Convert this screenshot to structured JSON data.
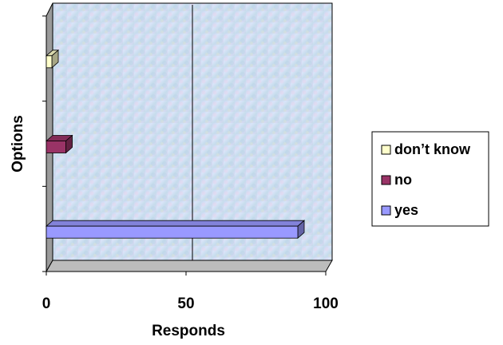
{
  "chart_data": {
    "type": "bar",
    "orientation": "horizontal",
    "style": "3d",
    "categories": [
      "yes",
      "no",
      "don't know"
    ],
    "values": [
      90,
      7,
      2
    ],
    "colors": [
      "#9999FF",
      "#993366",
      "#FFFFCC"
    ],
    "xlabel": "Responds",
    "ylabel": "Options",
    "xlim": [
      0,
      100
    ],
    "xticks": [
      0,
      50,
      100
    ],
    "gridlines": "vertical",
    "legend_position": "right",
    "legend": [
      {
        "label": "don’t know",
        "color": "#FFFFCC"
      },
      {
        "label": "no",
        "color": "#993366"
      },
      {
        "label": "yes",
        "color": "#9999FF"
      }
    ]
  }
}
